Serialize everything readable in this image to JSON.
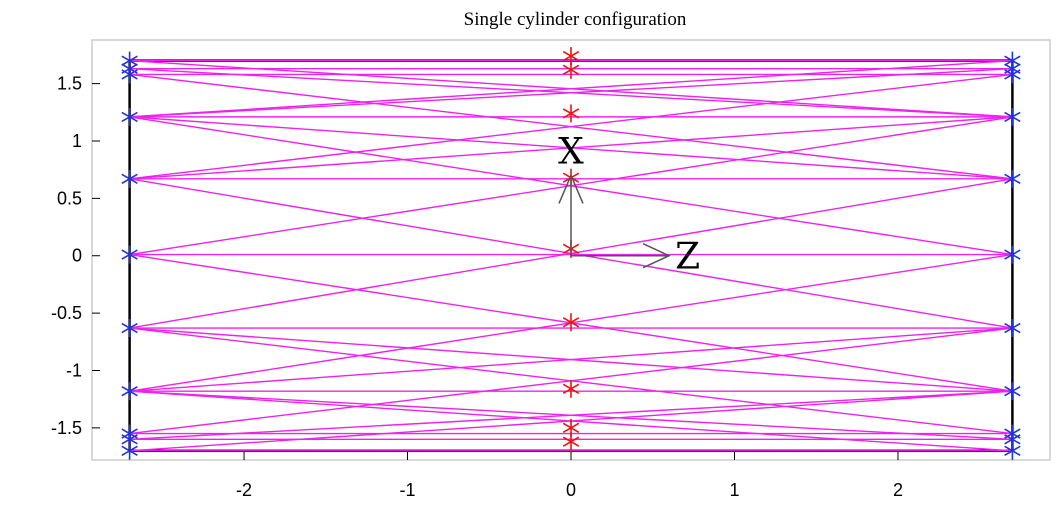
{
  "chart_data": {
    "type": "scatter",
    "title": "Single cylinder configuration",
    "xlabel": "",
    "ylabel": "",
    "xlim": [
      -2.93,
      2.93
    ],
    "ylim": [
      -1.78,
      1.88
    ],
    "xticks": [
      -2,
      -1,
      0,
      1,
      2
    ],
    "yticks": [
      -1.5,
      -1,
      -0.5,
      0,
      0.5,
      1,
      1.5
    ],
    "xtick_labels": [
      "-2",
      "-1",
      "0",
      "1",
      "2"
    ],
    "ytick_labels": [
      "-1.5",
      "-1",
      "-0.5",
      "0",
      "0.5",
      "1",
      "1.5"
    ],
    "grid": false,
    "colors": {
      "ray": "#ee22ee",
      "end_marker": "#2233dd",
      "center_marker": "#ee1111",
      "frame": "#000000",
      "axis_arrow": "#555555"
    },
    "ends_z": [
      -2.7,
      2.7
    ],
    "x_levels": [
      1.7,
      1.63,
      1.58,
      1.21,
      0.67,
      0.01,
      -0.63,
      -1.18,
      -1.55,
      -1.6,
      -1.7
    ],
    "center_markers": {
      "z": 0,
      "x": [
        1.74,
        1.62,
        1.24,
        0.68,
        0.06,
        -0.58,
        -1.16,
        -1.5,
        -1.62
      ]
    },
    "rays": [
      {
        "z": [
          -2.7,
          2.7
        ],
        "x": [
          1.7,
          1.7
        ]
      },
      {
        "z": [
          -2.7,
          2.7
        ],
        "x": [
          1.63,
          1.63
        ]
      },
      {
        "z": [
          -2.7,
          2.7
        ],
        "x": [
          1.58,
          1.58
        ]
      },
      {
        "z": [
          -2.7,
          2.7
        ],
        "x": [
          1.21,
          1.21
        ]
      },
      {
        "z": [
          -2.7,
          2.7
        ],
        "x": [
          0.67,
          0.67
        ]
      },
      {
        "z": [
          -2.7,
          2.7
        ],
        "x": [
          0.01,
          0.01
        ]
      },
      {
        "z": [
          -2.7,
          2.7
        ],
        "x": [
          -0.63,
          -0.63
        ]
      },
      {
        "z": [
          -2.7,
          2.7
        ],
        "x": [
          -1.18,
          -1.18
        ]
      },
      {
        "z": [
          -2.7,
          2.7
        ],
        "x": [
          -1.55,
          -1.55
        ]
      },
      {
        "z": [
          -2.7,
          2.7
        ],
        "x": [
          -1.6,
          -1.6
        ]
      },
      {
        "z": [
          -2.7,
          2.7
        ],
        "x": [
          -1.7,
          -1.7
        ]
      },
      {
        "z": [
          -2.7,
          2.7
        ],
        "x": [
          1.7,
          1.21
        ]
      },
      {
        "z": [
          -2.7,
          2.7
        ],
        "x": [
          1.21,
          1.7
        ]
      },
      {
        "z": [
          -2.7,
          2.7
        ],
        "x": [
          1.63,
          1.21
        ]
      },
      {
        "z": [
          -2.7,
          2.7
        ],
        "x": [
          1.21,
          1.63
        ]
      },
      {
        "z": [
          -2.7,
          2.7
        ],
        "x": [
          1.58,
          0.67
        ]
      },
      {
        "z": [
          -2.7,
          2.7
        ],
        "x": [
          0.67,
          1.58
        ]
      },
      {
        "z": [
          -2.7,
          2.7
        ],
        "x": [
          1.21,
          0.67
        ]
      },
      {
        "z": [
          -2.7,
          2.7
        ],
        "x": [
          0.67,
          1.21
        ]
      },
      {
        "z": [
          -2.7,
          2.7
        ],
        "x": [
          1.21,
          0.01
        ]
      },
      {
        "z": [
          -2.7,
          2.7
        ],
        "x": [
          0.01,
          1.21
        ]
      },
      {
        "z": [
          -2.7,
          2.7
        ],
        "x": [
          0.67,
          -0.63
        ]
      },
      {
        "z": [
          -2.7,
          2.7
        ],
        "x": [
          -0.63,
          0.67
        ]
      },
      {
        "z": [
          -2.7,
          2.7
        ],
        "x": [
          0.01,
          -1.18
        ]
      },
      {
        "z": [
          -2.7,
          2.7
        ],
        "x": [
          -1.18,
          0.01
        ]
      },
      {
        "z": [
          -2.7,
          2.7
        ],
        "x": [
          -0.63,
          -1.18
        ]
      },
      {
        "z": [
          -2.7,
          2.7
        ],
        "x": [
          -1.18,
          -0.63
        ]
      },
      {
        "z": [
          -2.7,
          2.7
        ],
        "x": [
          -0.63,
          -1.55
        ]
      },
      {
        "z": [
          -2.7,
          2.7
        ],
        "x": [
          -1.55,
          -0.63
        ]
      },
      {
        "z": [
          -2.7,
          2.7
        ],
        "x": [
          -1.18,
          -1.6
        ]
      },
      {
        "z": [
          -2.7,
          2.7
        ],
        "x": [
          -1.6,
          -1.18
        ]
      },
      {
        "z": [
          -2.7,
          2.7
        ],
        "x": [
          -1.18,
          -1.7
        ]
      },
      {
        "z": [
          -2.7,
          2.7
        ],
        "x": [
          -1.7,
          -1.18
        ]
      }
    ],
    "coordinate_axes": {
      "x_label": "X",
      "z_label": "Z",
      "origin": [
        0,
        0
      ],
      "x_arrow_tip": [
        0,
        0.7
      ],
      "z_arrow_tip": [
        0.6,
        0
      ]
    }
  }
}
